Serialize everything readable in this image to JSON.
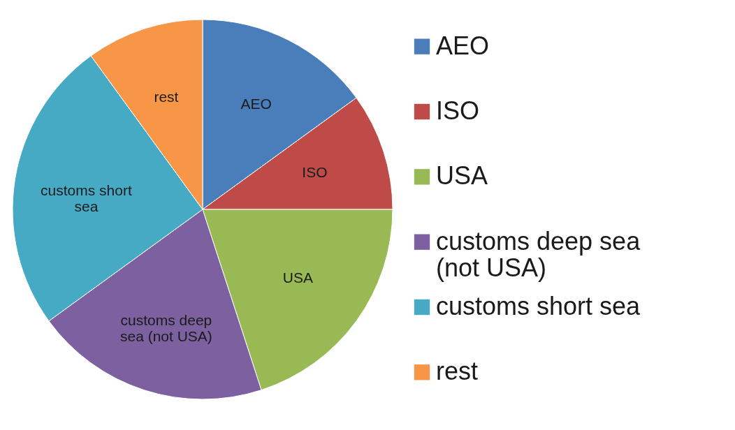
{
  "chart_data": {
    "type": "pie",
    "categories": [
      "AEO",
      "ISO",
      "USA",
      "customs deep sea (not USA)",
      "customs short sea",
      "rest"
    ],
    "values": [
      15,
      10,
      20,
      20,
      25,
      10
    ],
    "colors": [
      "#4a7ebb",
      "#be4b48",
      "#98b954",
      "#7d60a0",
      "#46aac5",
      "#f79646"
    ],
    "legend": "right"
  }
}
